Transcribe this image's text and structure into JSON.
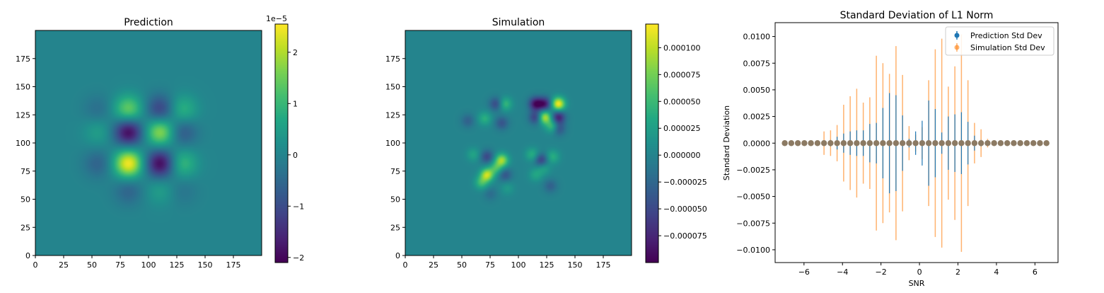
{
  "chart_data": [
    {
      "type": "heatmap",
      "title": "Prediction",
      "xlabel": "",
      "ylabel": "",
      "xlim": [
        0,
        200
      ],
      "ylim": [
        0,
        200
      ],
      "xticks": [
        "0",
        "25",
        "50",
        "75",
        "100",
        "125",
        "150",
        "175"
      ],
      "yticks": [
        "0",
        "25",
        "50",
        "75",
        "100",
        "125",
        "150",
        "175"
      ],
      "colormap": "viridis",
      "background_value": 0,
      "features": [
        {
          "x": 82,
          "y": 82,
          "value": 2.5
        },
        {
          "x": 110,
          "y": 82,
          "value": -2.0
        },
        {
          "x": 130,
          "y": 82,
          "value": 1.0
        },
        {
          "x": 55,
          "y": 82,
          "value": -0.6
        },
        {
          "x": 82,
          "y": 110,
          "value": -2.0
        },
        {
          "x": 110,
          "y": 110,
          "value": 1.8
        },
        {
          "x": 130,
          "y": 110,
          "value": -0.8
        },
        {
          "x": 55,
          "y": 110,
          "value": 0.5
        },
        {
          "x": 82,
          "y": 130,
          "value": 1.5
        },
        {
          "x": 110,
          "y": 130,
          "value": -1.2
        },
        {
          "x": 130,
          "y": 130,
          "value": 0.9
        },
        {
          "x": 55,
          "y": 130,
          "value": -0.4
        },
        {
          "x": 82,
          "y": 58,
          "value": -0.6
        },
        {
          "x": 110,
          "y": 58,
          "value": 0.5
        },
        {
          "x": 130,
          "y": 58,
          "value": -0.3
        }
      ],
      "colorbar": {
        "min": -2.1,
        "max": 2.55,
        "offset_label": "1e−5",
        "ticks": [
          {
            "value": -2,
            "label": "−2"
          },
          {
            "value": -1,
            "label": "−1"
          },
          {
            "value": 0,
            "label": "0"
          },
          {
            "value": 1,
            "label": "1"
          },
          {
            "value": 2,
            "label": "2"
          }
        ]
      }
    },
    {
      "type": "heatmap",
      "title": "Simulation",
      "xlabel": "",
      "ylabel": "",
      "xlim": [
        0,
        200
      ],
      "ylim": [
        0,
        200
      ],
      "xticks": [
        "0",
        "25",
        "50",
        "75",
        "100",
        "125",
        "150",
        "175"
      ],
      "yticks": [
        "0",
        "25",
        "50",
        "75",
        "100",
        "125",
        "150",
        "175"
      ],
      "colormap": "viridis",
      "background_value": 0,
      "features": [
        {
          "x": 135,
          "y": 135,
          "value": 0.00012
        },
        {
          "x": 123,
          "y": 123,
          "value": 0.0001
        },
        {
          "x": 115,
          "y": 135,
          "value": -9e-05
        },
        {
          "x": 123,
          "y": 135,
          "value": -8e-05
        },
        {
          "x": 135,
          "y": 123,
          "value": -8e-05
        },
        {
          "x": 115,
          "y": 123,
          "value": -6e-05
        },
        {
          "x": 130,
          "y": 115,
          "value": 6e-05
        },
        {
          "x": 135,
          "y": 113,
          "value": -5e-05
        },
        {
          "x": 72,
          "y": 72,
          "value": 0.0001
        },
        {
          "x": 85,
          "y": 85,
          "value": 9e-05
        },
        {
          "x": 80,
          "y": 78,
          "value": 5e-05
        },
        {
          "x": 67,
          "y": 65,
          "value": 5e-05
        },
        {
          "x": 88,
          "y": 135,
          "value": 5e-05
        },
        {
          "x": 80,
          "y": 135,
          "value": -5e-05
        },
        {
          "x": 70,
          "y": 122,
          "value": 4e-05
        },
        {
          "x": 85,
          "y": 118,
          "value": -4e-05
        },
        {
          "x": 72,
          "y": 88,
          "value": -5e-05
        },
        {
          "x": 88,
          "y": 72,
          "value": -4e-05
        },
        {
          "x": 60,
          "y": 90,
          "value": 3e-05
        },
        {
          "x": 55,
          "y": 120,
          "value": -3e-05
        },
        {
          "x": 120,
          "y": 85,
          "value": -6e-05
        },
        {
          "x": 112,
          "y": 90,
          "value": 4e-05
        },
        {
          "x": 130,
          "y": 88,
          "value": 4e-05
        },
        {
          "x": 115,
          "y": 72,
          "value": 3e-05
        },
        {
          "x": 128,
          "y": 62,
          "value": -3e-05
        },
        {
          "x": 122,
          "y": 78,
          "value": 3e-05
        },
        {
          "x": 90,
          "y": 60,
          "value": 2e-05
        },
        {
          "x": 75,
          "y": 55,
          "value": -2e-05
        }
      ],
      "colorbar": {
        "min": -0.0001,
        "max": 0.000122,
        "offset_label": "",
        "ticks": [
          {
            "value": -7.5e-05,
            "label": "−0.000075"
          },
          {
            "value": -5e-05,
            "label": "−0.000050"
          },
          {
            "value": -2.5e-05,
            "label": "−0.000025"
          },
          {
            "value": 0,
            "label": "0.000000"
          },
          {
            "value": 2.5e-05,
            "label": "0.000025"
          },
          {
            "value": 5e-05,
            "label": "0.000050"
          },
          {
            "value": 7.5e-05,
            "label": "0.000075"
          },
          {
            "value": 0.0001,
            "label": "0.000100"
          }
        ]
      }
    },
    {
      "type": "scatter",
      "subtype": "errorbar",
      "title": "Standard Deviation of L1 Norm",
      "xlabel": "SNR",
      "ylabel": "Standard Deviation",
      "xlim": [
        -7.5,
        7.2
      ],
      "ylim": [
        -0.0112,
        0.0113
      ],
      "xticks": [
        {
          "value": -6,
          "label": "−6"
        },
        {
          "value": -4,
          "label": "−4"
        },
        {
          "value": -2,
          "label": "−2"
        },
        {
          "value": 0,
          "label": "0"
        },
        {
          "value": 2,
          "label": "2"
        },
        {
          "value": 4,
          "label": "4"
        },
        {
          "value": 6,
          "label": "6"
        }
      ],
      "yticks": [
        {
          "value": -0.01,
          "label": "−0.0100"
        },
        {
          "value": -0.0075,
          "label": "−0.0075"
        },
        {
          "value": -0.005,
          "label": "−0.0050"
        },
        {
          "value": -0.0025,
          "label": "−0.0025"
        },
        {
          "value": 0,
          "label": "0.0000"
        },
        {
          "value": 0.0025,
          "label": "0.0025"
        },
        {
          "value": 0.005,
          "label": "0.0050"
        },
        {
          "value": 0.0075,
          "label": "0.0075"
        },
        {
          "value": 0.01,
          "label": "0.0100"
        }
      ],
      "grid": false,
      "legend_position": "top-right",
      "x": [
        -7.0,
        -6.66,
        -6.32,
        -5.98,
        -5.64,
        -5.3,
        -4.96,
        -4.62,
        -4.28,
        -3.94,
        -3.6,
        -3.26,
        -2.92,
        -2.58,
        -2.24,
        -1.9,
        -1.56,
        -1.22,
        -0.88,
        -0.54,
        -0.2,
        0.14,
        0.48,
        0.82,
        1.16,
        1.5,
        1.84,
        2.18,
        2.52,
        2.86,
        3.2,
        3.54,
        3.88,
        4.22,
        4.56,
        4.9,
        5.24,
        5.58,
        5.92,
        6.26,
        6.6
      ],
      "series": [
        {
          "name": "Prediction Std Dev",
          "color": "#1f77b4",
          "values": [
            0,
            0,
            0,
            0,
            0,
            0,
            0,
            0,
            0,
            0,
            0,
            0,
            0,
            0,
            0,
            0,
            0,
            0,
            0,
            0,
            0,
            0,
            0,
            0,
            0,
            0,
            0,
            0,
            0,
            0,
            0,
            0,
            0,
            0,
            0,
            0,
            0,
            0,
            0,
            0,
            0
          ],
          "error": [
            0,
            0,
            0,
            0,
            0,
            0,
            0.0001,
            0.0003,
            0.0006,
            0.0009,
            0.0011,
            0.0012,
            0.0012,
            0.0018,
            0.0019,
            0.0033,
            0.0047,
            0.0045,
            0.0026,
            0.0004,
            0.0011,
            0.0021,
            0.004,
            0.0032,
            0.001,
            0.0025,
            0.0027,
            0.0029,
            0.002,
            0.0007,
            0.0003,
            0.0001,
            0,
            0,
            0,
            0,
            0,
            0,
            0,
            0,
            0
          ]
        },
        {
          "name": "Simulation Std Dev",
          "color": "#ff7f0e",
          "values": [
            0,
            0,
            0,
            0,
            0,
            0,
            0,
            0,
            0,
            0,
            0,
            0,
            0,
            0,
            0,
            0,
            0,
            0,
            0,
            0,
            0,
            0,
            0,
            0,
            0,
            0,
            0,
            0,
            0,
            0,
            0,
            0,
            0,
            0,
            0,
            0,
            0,
            0,
            0,
            0,
            0
          ],
          "error": [
            0,
            0,
            0,
            0,
            0,
            0,
            0.0011,
            0.0012,
            0.0017,
            0.0036,
            0.0044,
            0.0051,
            0.0038,
            0.0043,
            0.0082,
            0.0075,
            0.0065,
            0.0091,
            0.0064,
            0.0016,
            0.0008,
            0.0015,
            0.0059,
            0.0088,
            0.0098,
            0.0053,
            0.0072,
            0.0102,
            0.0059,
            0.0019,
            0.0013,
            0.0004,
            0,
            0,
            0,
            0,
            0,
            0,
            0,
            0,
            0
          ]
        }
      ],
      "marker_color": "#8c7a63"
    }
  ]
}
